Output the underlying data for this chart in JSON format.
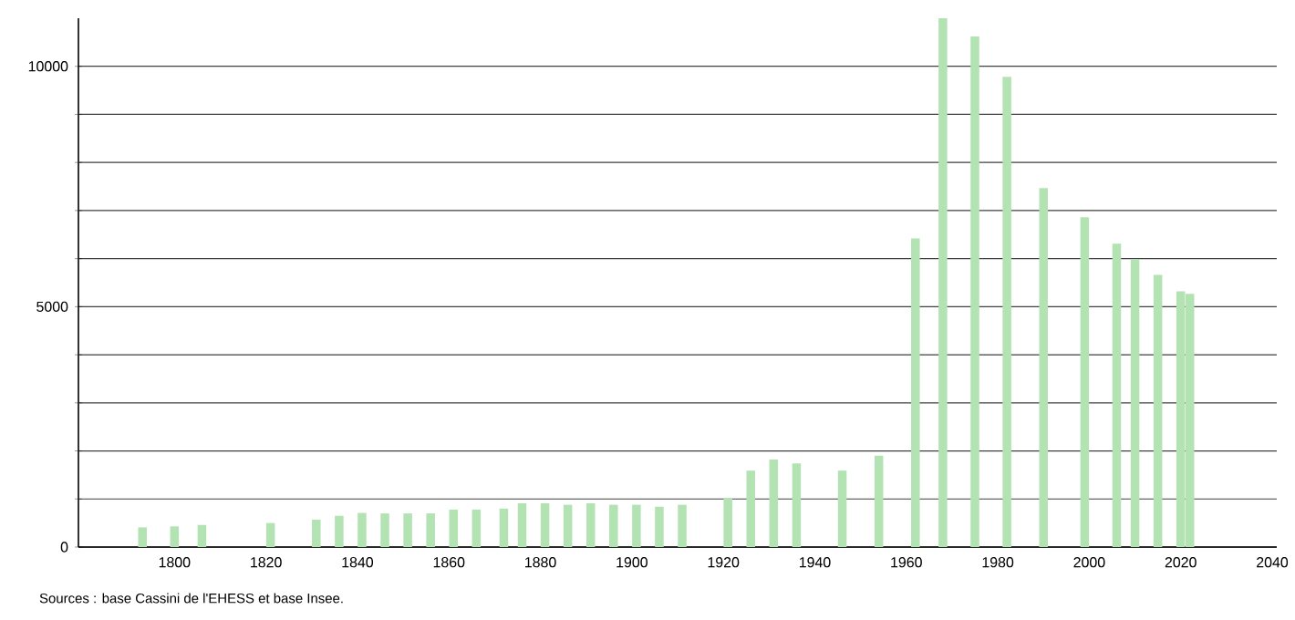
{
  "chart_data": {
    "type": "bar",
    "color": "#b3e3b3",
    "grid": "y",
    "x": [
      1793,
      1800,
      1806,
      1821,
      1831,
      1836,
      1841,
      1846,
      1851,
      1856,
      1861,
      1866,
      1872,
      1876,
      1881,
      1886,
      1891,
      1896,
      1901,
      1906,
      1911,
      1921,
      1926,
      1931,
      1936,
      1946,
      1954,
      1962,
      1968,
      1975,
      1982,
      1990,
      1999,
      2006,
      2010,
      2015,
      2020,
      2022
    ],
    "values": [
      410,
      430,
      460,
      500,
      570,
      650,
      710,
      700,
      700,
      700,
      780,
      780,
      800,
      910,
      910,
      880,
      910,
      880,
      880,
      840,
      880,
      1020,
      1590,
      1820,
      1740,
      1590,
      1900,
      6420,
      11000,
      10620,
      9780,
      7470,
      6860,
      6310,
      5990,
      5660,
      5320,
      5270
    ],
    "xlim": [
      1779,
      2041
    ],
    "ylim": [
      0,
      11000
    ],
    "xticks": [
      1800,
      1820,
      1840,
      1860,
      1880,
      1900,
      1920,
      1940,
      1960,
      1980,
      2000,
      2020,
      2040
    ],
    "yticks": [
      0,
      {
        "value": 1000,
        "label": null
      },
      {
        "value": 2000,
        "label": null
      },
      {
        "value": 3000,
        "label": null
      },
      {
        "value": 4000,
        "label": null
      },
      5000,
      {
        "value": 6000,
        "label": null
      },
      {
        "value": 7000,
        "label": null
      },
      {
        "value": 8000,
        "label": null
      },
      {
        "value": 9000,
        "label": null
      },
      10000
    ],
    "annotations": [
      "Sources : base Cassini de l'EHESS et base Insee."
    ]
  }
}
